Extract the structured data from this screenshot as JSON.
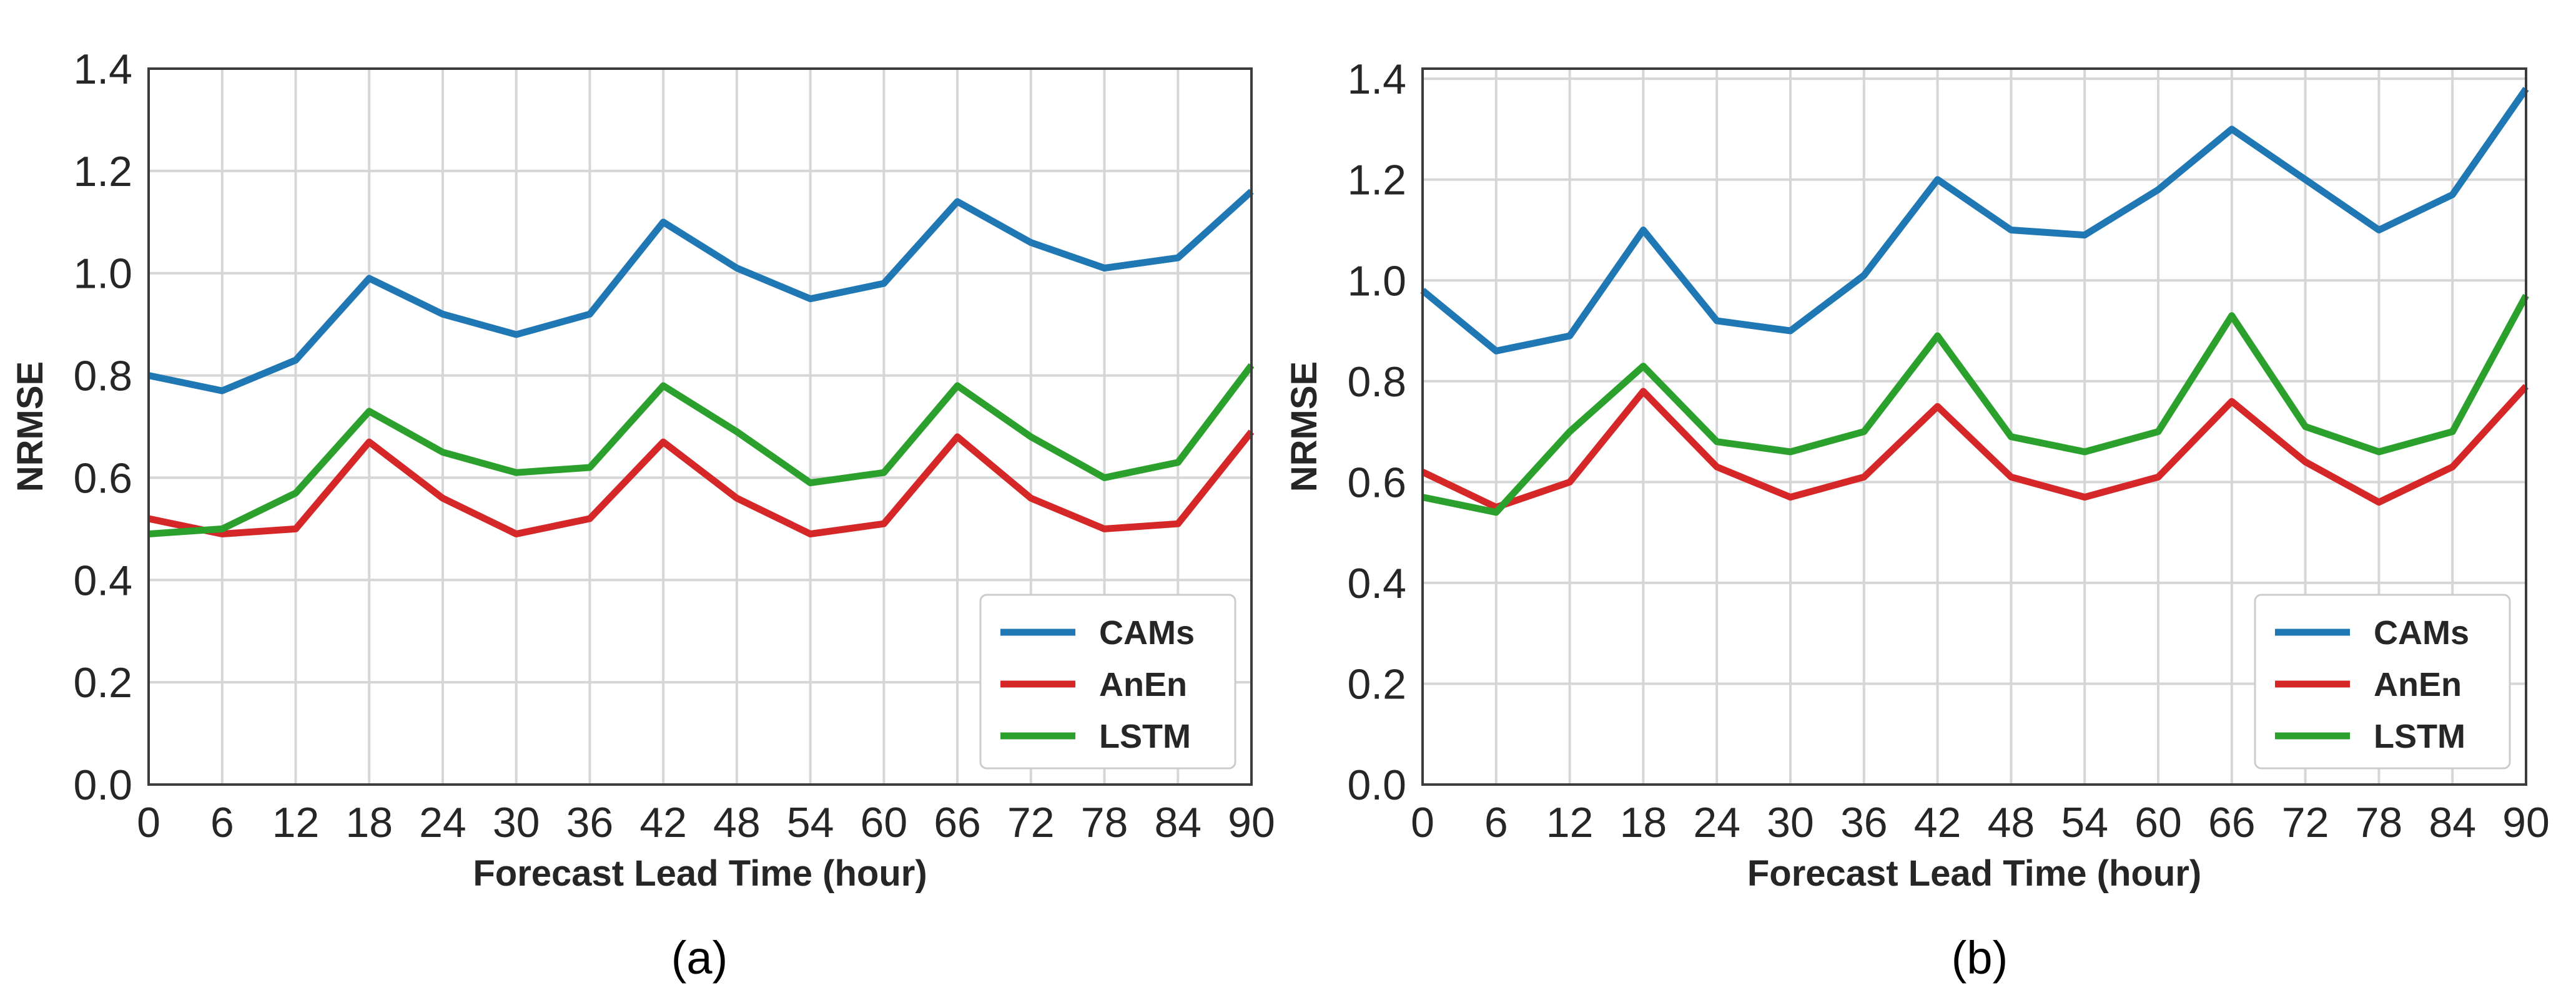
{
  "chart_data": [
    {
      "type": "line",
      "caption": "(a)",
      "title": "",
      "xlabel": "Forecast Lead Time (hour)",
      "ylabel": "NRMSE",
      "x": [
        0,
        6,
        12,
        18,
        24,
        30,
        36,
        42,
        48,
        54,
        60,
        66,
        72,
        78,
        84,
        90
      ],
      "xlim": [
        0,
        90
      ],
      "ylim": [
        0,
        1.4
      ],
      "yticks": [
        "0.0",
        "0.2",
        "0.4",
        "0.6",
        "0.8",
        "1.0",
        "1.2",
        "1.4"
      ],
      "grid": true,
      "legend_position": "lower-right",
      "series": [
        {
          "name": "CAMs",
          "color": "#1f77b4",
          "values": [
            0.8,
            0.77,
            0.83,
            0.99,
            0.92,
            0.88,
            0.92,
            1.1,
            1.01,
            0.95,
            0.98,
            1.14,
            1.06,
            1.01,
            1.03,
            1.16
          ]
        },
        {
          "name": "AnEn",
          "color": "#d62728",
          "values": [
            0.52,
            0.49,
            0.5,
            0.67,
            0.56,
            0.49,
            0.52,
            0.67,
            0.56,
            0.49,
            0.51,
            0.68,
            0.56,
            0.5,
            0.51,
            0.69
          ]
        },
        {
          "name": "LSTM",
          "color": "#2ca02c",
          "values": [
            0.49,
            0.5,
            0.57,
            0.73,
            0.65,
            0.61,
            0.62,
            0.78,
            0.69,
            0.59,
            0.61,
            0.78,
            0.68,
            0.6,
            0.63,
            0.82
          ]
        }
      ]
    },
    {
      "type": "line",
      "caption": "(b)",
      "title": "",
      "xlabel": "Forecast Lead Time (hour)",
      "ylabel": "NRMSE",
      "x": [
        0,
        6,
        12,
        18,
        24,
        30,
        36,
        42,
        48,
        54,
        60,
        66,
        72,
        78,
        84,
        90
      ],
      "xlim": [
        0,
        90
      ],
      "ylim": [
        0,
        1.42
      ],
      "yticks": [
        "0.0",
        "0.2",
        "0.4",
        "0.6",
        "0.8",
        "1.0",
        "1.2",
        "1.4"
      ],
      "grid": true,
      "legend_position": "lower-right",
      "series": [
        {
          "name": "CAMs",
          "color": "#1f77b4",
          "values": [
            0.98,
            0.86,
            0.89,
            1.1,
            0.92,
            0.9,
            1.01,
            1.2,
            1.1,
            1.09,
            1.18,
            1.3,
            1.2,
            1.1,
            1.17,
            1.38
          ]
        },
        {
          "name": "AnEn",
          "color": "#d62728",
          "values": [
            0.62,
            0.55,
            0.6,
            0.78,
            0.63,
            0.57,
            0.61,
            0.75,
            0.61,
            0.57,
            0.61,
            0.76,
            0.64,
            0.56,
            0.63,
            0.79
          ]
        },
        {
          "name": "LSTM",
          "color": "#2ca02c",
          "values": [
            0.57,
            0.54,
            0.7,
            0.83,
            0.68,
            0.66,
            0.7,
            0.89,
            0.69,
            0.66,
            0.7,
            0.93,
            0.71,
            0.66,
            0.7,
            0.97
          ]
        }
      ]
    }
  ]
}
